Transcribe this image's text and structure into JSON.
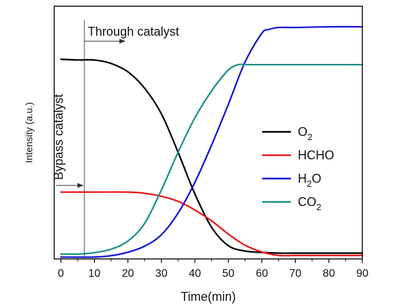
{
  "chart_data": {
    "type": "line",
    "title": "",
    "xlabel": "Time(min)",
    "ylabel": "Intensity (a.u.)",
    "xlim": [
      -2,
      90
    ],
    "xticks": [
      "0",
      "10",
      "20",
      "30",
      "40",
      "50",
      "60",
      "70",
      "80",
      "90"
    ],
    "ylim": [
      0,
      1
    ],
    "y_ticks_labeled": false,
    "grid": false,
    "legend_position": "center-right",
    "annotations": {
      "through": "Through catalyst",
      "bypass": "Bypass catalyst",
      "switch_time": 7
    },
    "series": [
      {
        "name": "O2",
        "legend": {
          "base": "O",
          "sub": "2",
          "tail": ""
        },
        "color": "#000000",
        "x": [
          0,
          5,
          10,
          15,
          20,
          25,
          30,
          35,
          40,
          45,
          50,
          55,
          60,
          65,
          70,
          80,
          90
        ],
        "y": [
          0.857,
          0.854,
          0.854,
          0.839,
          0.803,
          0.732,
          0.622,
          0.456,
          0.277,
          0.133,
          0.054,
          0.031,
          0.025,
          0.022,
          0.022,
          0.022,
          0.022
        ]
      },
      {
        "name": "HCHO",
        "legend": {
          "base": "HCHO",
          "sub": "",
          "tail": ""
        },
        "color": "#e8191a",
        "x": [
          0,
          10,
          20,
          25,
          30,
          35,
          40,
          45,
          50,
          55,
          60,
          65,
          70,
          80,
          90
        ],
        "y": [
          0.285,
          0.285,
          0.285,
          0.28,
          0.267,
          0.245,
          0.208,
          0.161,
          0.104,
          0.056,
          0.027,
          0.012,
          0.012,
          0.012,
          0.012
        ]
      },
      {
        "name": "H2O",
        "legend": {
          "base": "H",
          "sub": "2",
          "tail": "O"
        },
        "color": "#1515d4",
        "x": [
          0,
          10,
          15,
          20,
          25,
          30,
          35,
          40,
          45,
          50,
          55,
          60,
          62,
          65,
          70,
          80,
          90
        ],
        "y": [
          0.005,
          0.005,
          0.011,
          0.026,
          0.052,
          0.101,
          0.195,
          0.327,
          0.488,
          0.663,
          0.846,
          0.969,
          0.985,
          0.994,
          0.994,
          0.997,
          0.997
        ]
      },
      {
        "name": "CO2",
        "legend": {
          "base": "CO",
          "sub": "2",
          "tail": ""
        },
        "color": "#1a8f8a",
        "x": [
          0,
          5,
          10,
          15,
          20,
          25,
          30,
          35,
          40,
          45,
          50,
          53,
          55,
          60,
          70,
          80,
          90
        ],
        "y": [
          0.018,
          0.018,
          0.024,
          0.039,
          0.074,
          0.15,
          0.294,
          0.457,
          0.605,
          0.721,
          0.811,
          0.834,
          0.834,
          0.834,
          0.834,
          0.834,
          0.834
        ]
      }
    ]
  }
}
